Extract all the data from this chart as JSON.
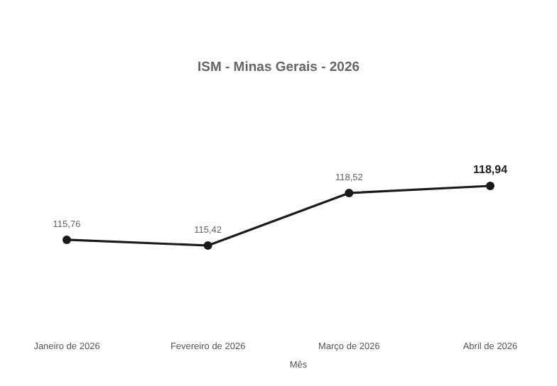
{
  "chart_data": {
    "type": "line",
    "title": "ISM - Minas Gerais - 2026",
    "xlabel": "Mês",
    "categories": [
      "Janeiro de 2026",
      "Fevereiro de 2026",
      "Março de 2026",
      "Abril de 2026"
    ],
    "values": [
      115.76,
      115.42,
      118.52,
      118.94
    ],
    "value_labels": [
      "115,76",
      "115,42",
      "118,52",
      "118,94"
    ],
    "color": "#1a1a1a",
    "marker": "circle",
    "line_style": "solid"
  }
}
